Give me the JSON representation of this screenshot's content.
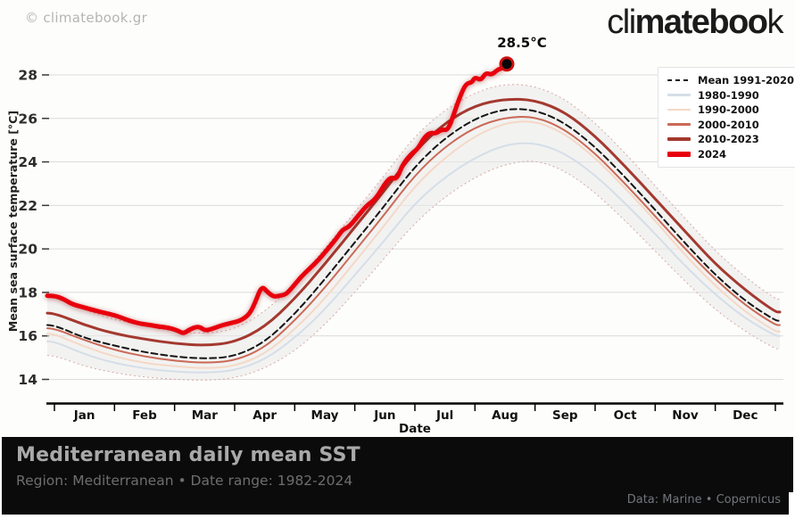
{
  "header": {
    "copyright": "© climatebook.gr",
    "logo_light1": "cli",
    "logo_bold": "mateboo",
    "logo_light2": "k"
  },
  "chart_data": {
    "type": "line",
    "y_axis_title": "Mean sea surface temperature [°C]",
    "x_axis_title": "Date",
    "y_ticks": [
      14,
      16,
      18,
      20,
      22,
      24,
      26,
      28
    ],
    "y_unit": "°C",
    "x_unit": "month index (0 = Jan 1, 12 = Dec 31)",
    "x_tick_labels": [
      "Jan",
      "Feb",
      "Mar",
      "Apr",
      "May",
      "Jun",
      "Jul",
      "Aug",
      "Sep",
      "Oct",
      "Nov",
      "Dec"
    ],
    "x_months": [
      0,
      0.5,
      1,
      1.5,
      2,
      2.5,
      3,
      3.5,
      4,
      4.5,
      5,
      5.5,
      6,
      6.5,
      7,
      7.5,
      8,
      8.5,
      9,
      9.5,
      10,
      10.5,
      11,
      11.5,
      12
    ],
    "range_band": {
      "name": "1982-2024 min-max range",
      "fill": "#e9e9e9",
      "edge_color": "#d8aba2",
      "x": [
        0,
        0.5,
        1,
        1.5,
        2,
        2.5,
        3,
        3.5,
        4,
        4.5,
        5,
        5.5,
        6,
        6.5,
        7,
        7.5,
        8,
        8.5,
        9,
        9.5,
        10,
        10.5,
        11,
        11.5,
        12
      ],
      "upper": [
        17.8,
        17.2,
        16.75,
        16.45,
        16.2,
        16.1,
        16.3,
        17.1,
        18.4,
        20.0,
        21.7,
        23.4,
        25.2,
        26.4,
        27.2,
        27.6,
        27.5,
        26.9,
        25.8,
        24.4,
        22.9,
        21.4,
        19.9,
        18.7,
        17.7
      ],
      "lower": [
        15.1,
        14.6,
        14.3,
        14.1,
        14.0,
        13.95,
        14.05,
        14.5,
        15.3,
        16.5,
        18.0,
        19.6,
        21.2,
        22.4,
        23.3,
        23.9,
        24.1,
        23.6,
        22.6,
        21.3,
        19.9,
        18.5,
        17.2,
        16.2,
        15.4
      ]
    },
    "series": [
      {
        "name": "1980-1990",
        "color": "#d5dee8",
        "width": 2,
        "y": [
          15.75,
          15.15,
          14.75,
          14.5,
          14.35,
          14.3,
          14.4,
          14.9,
          15.9,
          17.2,
          18.8,
          20.4,
          22.1,
          23.3,
          24.2,
          24.8,
          24.9,
          24.4,
          23.4,
          22.1,
          20.7,
          19.2,
          17.9,
          16.8,
          16.0
        ]
      },
      {
        "name": "1990-2000",
        "color": "#f5d8c6",
        "width": 2,
        "y": [
          16.1,
          15.5,
          15.05,
          14.75,
          14.6,
          14.5,
          14.6,
          15.15,
          16.3,
          17.7,
          19.4,
          21.1,
          22.9,
          24.2,
          25.2,
          25.8,
          25.9,
          25.3,
          24.2,
          22.8,
          21.3,
          19.7,
          18.3,
          17.1,
          16.2
        ]
      },
      {
        "name": "2000-2010",
        "color": "#ca6a57",
        "width": 2,
        "y": [
          16.35,
          15.8,
          15.35,
          15.05,
          14.85,
          14.75,
          14.85,
          15.45,
          16.7,
          18.2,
          19.9,
          21.6,
          23.4,
          24.7,
          25.6,
          26.05,
          26.1,
          25.5,
          24.4,
          23.0,
          21.5,
          20.0,
          18.6,
          17.4,
          16.5
        ]
      },
      {
        "name": "Mean 1991-2020",
        "color": "#141414",
        "width": 2,
        "dash": "7 4",
        "y": [
          16.5,
          15.9,
          15.55,
          15.25,
          15.05,
          14.95,
          15.05,
          15.7,
          17.0,
          18.6,
          20.3,
          22.0,
          23.8,
          25.1,
          26.0,
          26.45,
          26.4,
          25.8,
          24.7,
          23.3,
          21.8,
          20.25,
          18.8,
          17.6,
          16.7
        ]
      },
      {
        "name": "2010-2023",
        "color": "#a4392f",
        "width": 3,
        "y": [
          17.05,
          16.5,
          16.1,
          15.85,
          15.65,
          15.55,
          15.7,
          16.4,
          17.7,
          19.3,
          21.0,
          22.7,
          24.5,
          25.8,
          26.6,
          26.9,
          26.85,
          26.3,
          25.2,
          23.8,
          22.3,
          20.8,
          19.3,
          18.1,
          17.1
        ]
      },
      {
        "name": "2024",
        "color": "#e8000d",
        "width": 5,
        "glow": true,
        "x": [
          0,
          0.15,
          0.3,
          0.5,
          0.7,
          0.85,
          1.0,
          1.15,
          1.3,
          1.45,
          1.6,
          1.75,
          1.9,
          2.05,
          2.15,
          2.25,
          2.4,
          2.5,
          2.6,
          2.7,
          2.8,
          2.95,
          3.1,
          3.25,
          3.35,
          3.45,
          3.55,
          3.65,
          3.75,
          3.85,
          3.95,
          4.1,
          4.25,
          4.4,
          4.55,
          4.7,
          4.8,
          4.9,
          5.05,
          5.2,
          5.35,
          5.5,
          5.6,
          5.7,
          5.8,
          5.95,
          6.05,
          6.15,
          6.25,
          6.35,
          6.45,
          6.55,
          6.65,
          6.75,
          6.85,
          6.95,
          7.0,
          7.1,
          7.18,
          7.28,
          7.38,
          7.45,
          7.53
        ],
        "y": [
          17.85,
          17.7,
          17.45,
          17.3,
          17.15,
          17.05,
          16.95,
          16.8,
          16.65,
          16.55,
          16.5,
          16.42,
          16.38,
          16.25,
          16.1,
          16.3,
          16.45,
          16.25,
          16.3,
          16.4,
          16.5,
          16.6,
          16.7,
          17.0,
          17.6,
          18.3,
          18.0,
          17.8,
          17.85,
          17.9,
          18.2,
          18.7,
          19.1,
          19.5,
          20.0,
          20.5,
          20.9,
          21.0,
          21.5,
          22.0,
          22.3,
          23.0,
          23.3,
          23.2,
          23.9,
          24.4,
          24.6,
          25.1,
          25.35,
          25.3,
          25.5,
          25.45,
          26.2,
          27.0,
          27.6,
          27.65,
          27.9,
          27.75,
          28.1,
          28.0,
          28.25,
          28.3,
          28.5
        ]
      }
    ],
    "annotation": {
      "text": "28.5°C",
      "x_month": 7.53,
      "temp": 28.5
    }
  },
  "legend": {
    "items": [
      {
        "label": "Mean 1991-2020",
        "color": "#141414",
        "height": 2.5,
        "dashed": true
      },
      {
        "label": "1980-1990",
        "color": "#d5dee8",
        "height": 2.5,
        "dashed": false
      },
      {
        "label": "1990-2000",
        "color": "#f5d8c6",
        "height": 2.5,
        "dashed": false
      },
      {
        "label": "2000-2010",
        "color": "#ca6a57",
        "height": 3,
        "dashed": false
      },
      {
        "label": "2010-2023",
        "color": "#a4392f",
        "height": 4.5,
        "dashed": false
      },
      {
        "label": "2024",
        "color": "#e8000d",
        "height": 6,
        "dashed": false
      }
    ]
  },
  "footer": {
    "title": "Mediterranean daily mean SST",
    "subtitle": "Region: Mediterranean • Date range: 1982-2024",
    "credit": "Data: Marine • Copernicus"
  }
}
